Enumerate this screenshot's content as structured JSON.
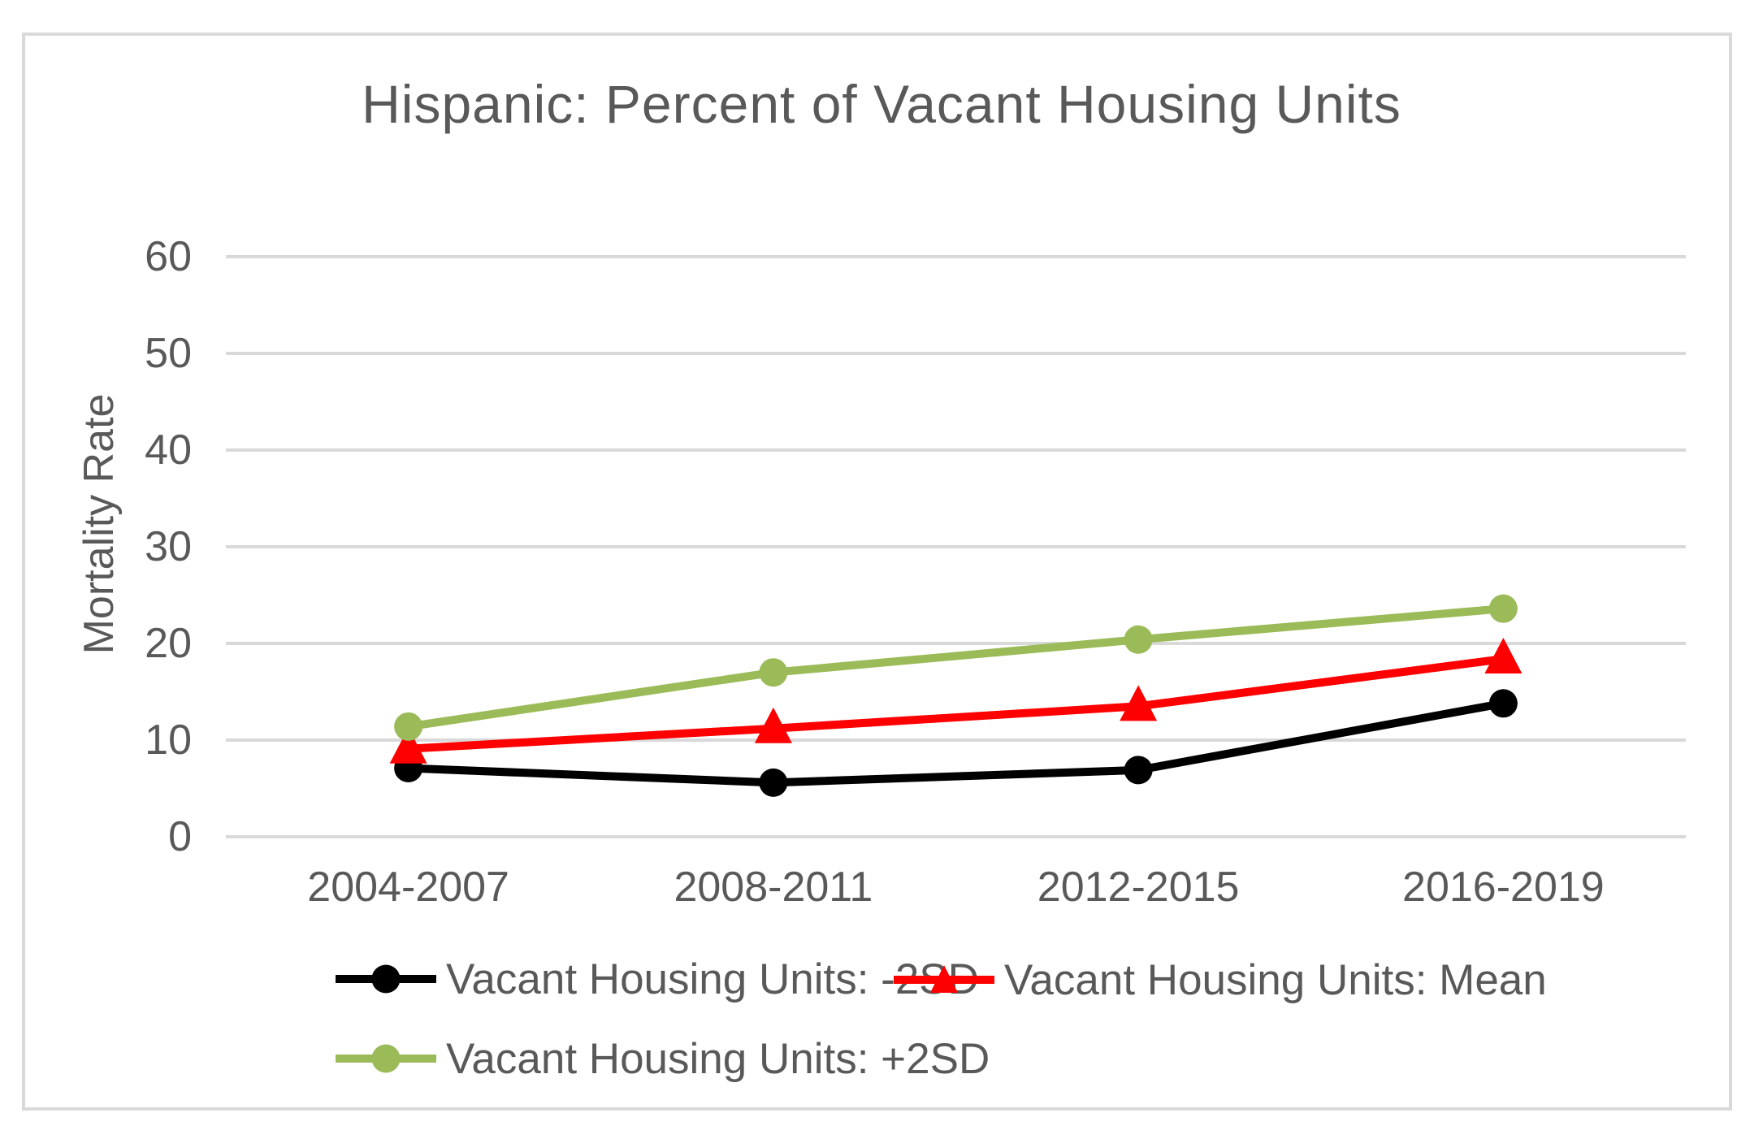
{
  "chart_data": {
    "type": "line",
    "title": "Hispanic: Percent of Vacant Housing Units",
    "xlabel": "",
    "ylabel": "Mortality Rate",
    "categories": [
      "2004-2007",
      "2008-2011",
      "2012-2015",
      "2016-2019"
    ],
    "ylim": [
      0,
      60
    ],
    "yticks": [
      0,
      10,
      20,
      30,
      40,
      50,
      60
    ],
    "grid": true,
    "legend_position": "bottom-left-two-rows",
    "series": [
      {
        "name": "Vacant Housing Units: -2SD",
        "color": "#000000",
        "marker": "circle",
        "values": [
          7.1,
          5.6,
          6.9,
          13.8
        ]
      },
      {
        "name": "Vacant Housing Units: Mean",
        "color": "#FF0000",
        "marker": "triangle",
        "values": [
          9.1,
          11.2,
          13.5,
          18.4
        ]
      },
      {
        "name": "Vacant Housing Units: +2SD",
        "color": "#9BBB59",
        "marker": "circle",
        "values": [
          11.4,
          17.0,
          20.4,
          23.6
        ]
      }
    ],
    "colors": {
      "text": "#595959",
      "gridline": "#D9D9D9",
      "border": "#D9D9D9",
      "background": "#FFFFFF"
    }
  }
}
